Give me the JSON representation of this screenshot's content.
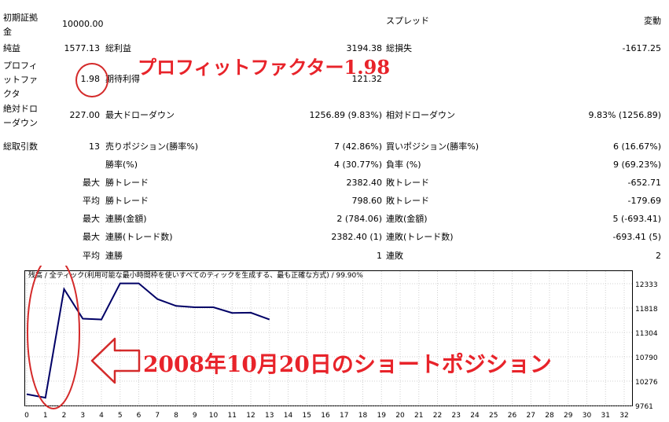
{
  "report": {
    "initial_deposit_label": "初期証拠金",
    "initial_deposit_value": "10000.00",
    "spread_label": "スプレッド",
    "spread_value": "変動",
    "net_profit_label": "純益",
    "net_profit_value": "1577.13",
    "gross_profit_label": "総利益",
    "gross_profit_value": "3194.38",
    "gross_loss_label": "総損失",
    "gross_loss_value": "-1617.25",
    "profit_factor_label": "プロフィットファクタ",
    "profit_factor_value": "1.98",
    "expected_payoff_label": "期待利得",
    "expected_payoff_value": "121.32",
    "abs_drawdown_label": "絶対ドローダウン",
    "abs_drawdown_value": "227.00",
    "max_drawdown_label": "最大ドローダウン",
    "max_drawdown_value": "1256.89 (9.83%)",
    "rel_drawdown_label": "相対ドローダウン",
    "rel_drawdown_value": "9.83% (1256.89)",
    "total_trades_label": "総取引数",
    "total_trades_value": "13",
    "short_positions_label": "売りポジション(勝率%)",
    "short_positions_value": "7 (42.86%)",
    "long_positions_label": "買いポジション(勝率%)",
    "long_positions_value": "6 (16.67%)",
    "win_rate_label": "勝率(%)",
    "win_rate_value": "4 (30.77%)",
    "loss_rate_label": "負率 (%)",
    "loss_rate_value": "9 (69.23%)",
    "rows": [
      {
        "prefix": "最大",
        "label1": "勝トレード",
        "value1": "2382.40",
        "label2": "敗トレード",
        "value2": "-652.71"
      },
      {
        "prefix": "平均",
        "label1": "勝トレード",
        "value1": "798.60",
        "label2": "敗トレード",
        "value2": "-179.69"
      },
      {
        "prefix": "最大",
        "label1": "連勝(金額)",
        "value1": "2 (784.06)",
        "label2": "連敗(金額)",
        "value2": "5 (-693.41)"
      },
      {
        "prefix": "最大",
        "label1": "連勝(トレード数)",
        "value1": "2382.40 (1)",
        "label2": "連敗(トレード数)",
        "value2": "-693.41 (5)"
      },
      {
        "prefix": "平均",
        "label1": "連勝",
        "value1": "1",
        "label2": "連敗",
        "value2": "2"
      }
    ]
  },
  "annotations": {
    "profit_factor": "プロフィットファクター1.98",
    "short_position": "2008年10月20日のショートポジション"
  },
  "chart_data": {
    "type": "line",
    "title": "残高 / 全ティック(利用可能な最小時間枠を使いすべてのティックを生成する、最も正確な方式) / 99.90%",
    "x_ticks": [
      "0",
      "1",
      "2",
      "3",
      "4",
      "5",
      "6",
      "7",
      "8",
      "9",
      "10",
      "11",
      "12",
      "13",
      "14",
      "15",
      "16",
      "17",
      "18",
      "19",
      "20",
      "21",
      "22",
      "23",
      "24",
      "25",
      "26",
      "27",
      "28",
      "29",
      "30",
      "31",
      "32"
    ],
    "y_ticks": [
      "12333",
      "11818",
      "11304",
      "10790",
      "10276",
      "9761"
    ],
    "ylim": [
      9761,
      12333
    ],
    "xlim": [
      0,
      32
    ],
    "x": [
      0,
      1,
      2,
      3,
      4,
      5,
      6,
      7,
      8,
      9,
      10,
      11,
      12,
      13
    ],
    "y": [
      10000,
      9925,
      12220,
      11595,
      11577,
      12340,
      12340,
      12008,
      11864,
      11835,
      11835,
      11715,
      11720,
      11577
    ],
    "line_color": "#000066"
  },
  "colors": {
    "annotation_red": "#e8232a"
  }
}
